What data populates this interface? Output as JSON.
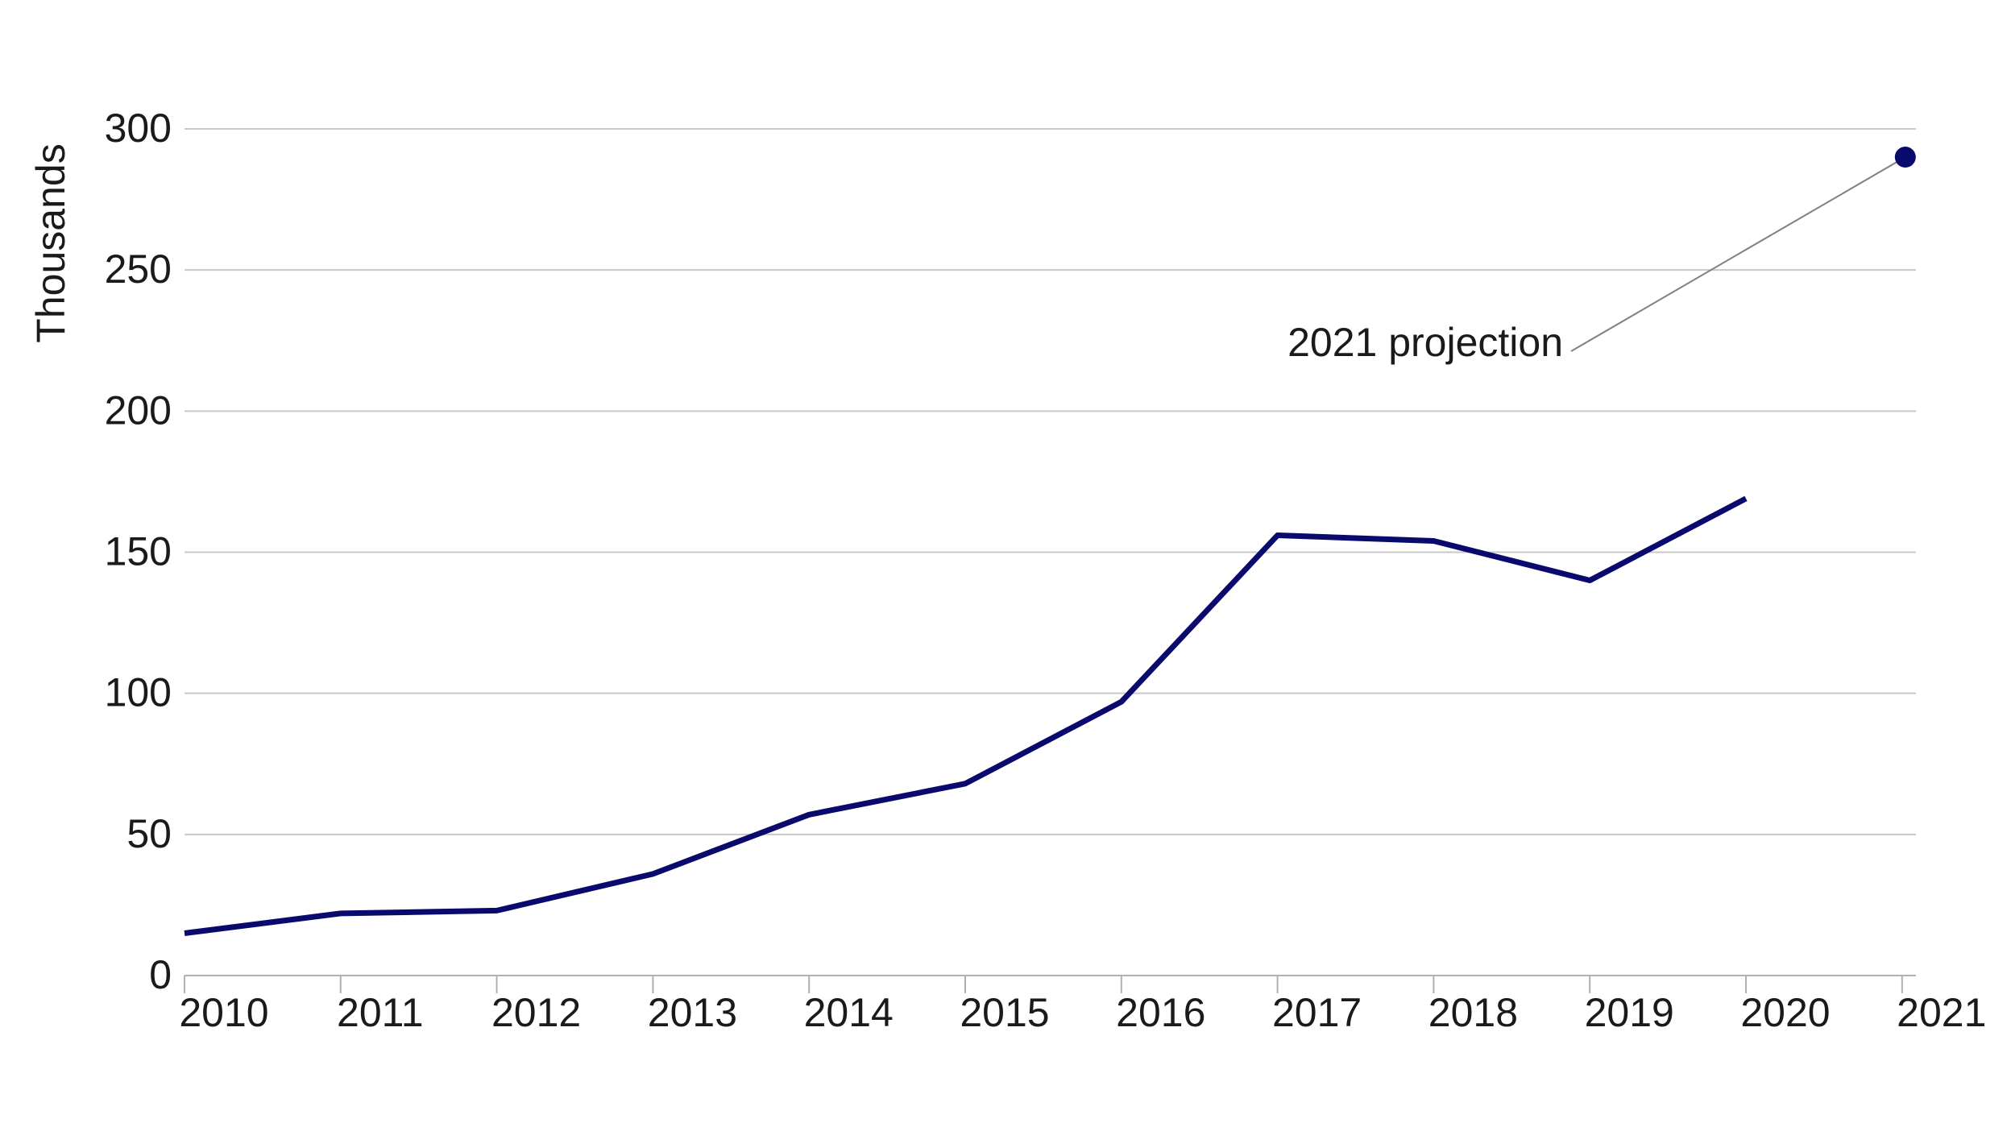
{
  "chart_data": {
    "type": "line",
    "xlabel": "",
    "ylabel": "Thousands",
    "x": [
      "2010",
      "2011",
      "2012",
      "2013",
      "2014",
      "2015",
      "2016",
      "2017",
      "2018",
      "2019",
      "2020",
      "2021"
    ],
    "ylim": [
      0,
      300
    ],
    "yticks": [
      "0",
      "50",
      "100",
      "150",
      "200",
      "250",
      "300"
    ],
    "grid": true,
    "series": [
      {
        "values": [
          15,
          22,
          23,
          36,
          57,
          68,
          97,
          156,
          154,
          140,
          169,
          null
        ],
        "color": "#0a0a6e"
      }
    ],
    "projection": {
      "x": "2021",
      "value": 290,
      "label": "2021 projection",
      "color": "#0a0a6e"
    }
  }
}
